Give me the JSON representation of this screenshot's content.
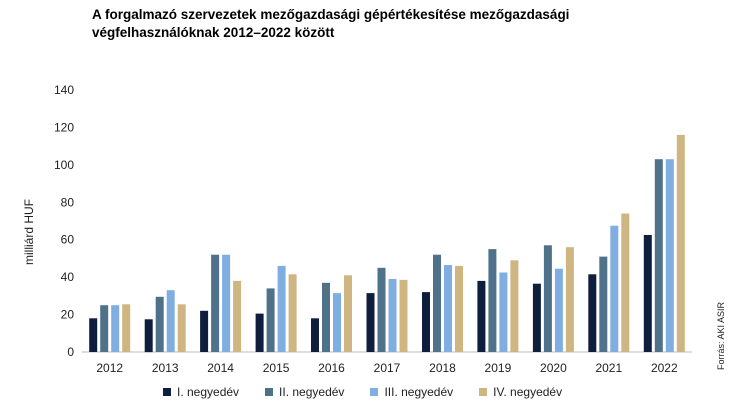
{
  "chart_data": {
    "type": "bar",
    "title": "A forgalmazó szervezetek mezőgazdasági gépértékesítése mezőgazdasági végfelhasználóknak 2012–2022 között",
    "ylabel": "milliárd HUF",
    "xlabel": "",
    "ylim": [
      0,
      140
    ],
    "yticks": [
      0,
      20,
      40,
      60,
      80,
      100,
      120,
      140
    ],
    "grid": false,
    "legend_position": "bottom",
    "categories": [
      "2012",
      "2013",
      "2014",
      "2015",
      "2016",
      "2017",
      "2018",
      "2019",
      "2020",
      "2021",
      "2022"
    ],
    "series": [
      {
        "name": "I. negyedév",
        "color": "#0f1e3c",
        "values": [
          18,
          17.5,
          22,
          20.5,
          18,
          31.5,
          32,
          38,
          36.5,
          41.5,
          62.5
        ]
      },
      {
        "name": "II. negyedév",
        "color": "#4f728a",
        "values": [
          25,
          29.5,
          52,
          34,
          37,
          45,
          52,
          55,
          57,
          51,
          103
        ]
      },
      {
        "name": "III. negyedév",
        "color": "#80aee0",
        "values": [
          25,
          33,
          52,
          46,
          31.5,
          39,
          46.5,
          42.5,
          44.5,
          67.5,
          103
        ]
      },
      {
        "name": "IV. negyedév",
        "color": "#cfb582",
        "values": [
          25.5,
          25.5,
          38,
          41.5,
          41,
          38.5,
          46,
          49,
          56,
          74,
          116
        ]
      }
    ],
    "source": "Forrás: AKI ASIR"
  }
}
